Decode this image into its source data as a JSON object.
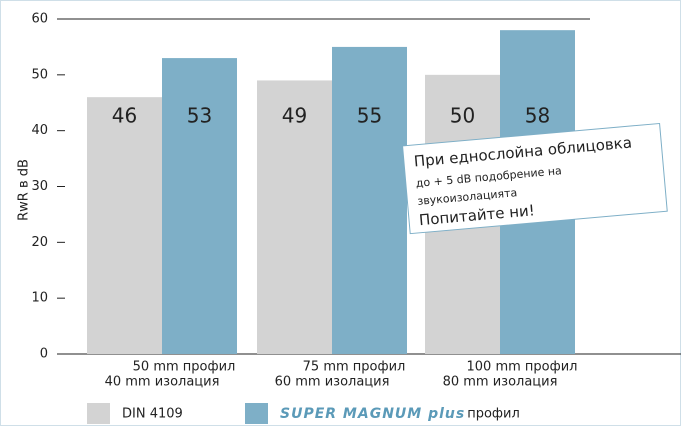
{
  "chart_data": {
    "type": "bar",
    "ylabel": "RwR в dB",
    "categories": [
      "50 mm профил",
      "75 mm профил",
      "100 mm профил"
    ],
    "category_sublabels": [
      "40 mm изолация",
      "60 mm изолация",
      "80 mm изолация"
    ],
    "series": [
      {
        "name": "DIN  4109",
        "color": "#d3d3d3",
        "values": [
          46,
          49,
          50
        ]
      },
      {
        "name": "SUPER MAGNUM plus",
        "color": "#7eafc7",
        "values": [
          53,
          55,
          58
        ]
      }
    ],
    "legend_suffix": "профил",
    "ylim": [
      0,
      60
    ],
    "yticks": [
      0,
      10,
      20,
      30,
      40,
      50,
      60
    ],
    "annotation": [
      "При еднослойна облицовка",
      "до + 5 dB подобрение на",
      "звукоизолацията",
      "Попитайте ни!"
    ]
  }
}
